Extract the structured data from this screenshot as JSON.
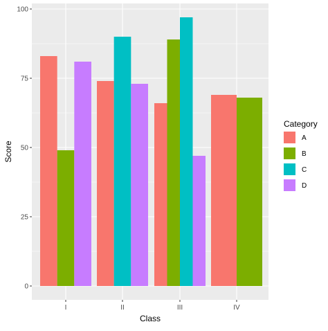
{
  "chart_data": {
    "type": "bar",
    "title": "",
    "xlabel": "Class",
    "ylabel": "Score",
    "ylim": [
      0,
      100
    ],
    "yticks": [
      "0",
      "25",
      "50",
      "75",
      "100"
    ],
    "grid": true,
    "legend": {
      "title": "Category",
      "placement": "right"
    },
    "categories": [
      "I",
      "II",
      "III",
      "IV"
    ],
    "series": [
      {
        "name": "A",
        "color": "#F8766D",
        "values": [
          83,
          74,
          66,
          69
        ]
      },
      {
        "name": "B",
        "color": "#7CAE00",
        "values": [
          49,
          null,
          89,
          68
        ]
      },
      {
        "name": "C",
        "color": "#00BFC4",
        "values": [
          null,
          90,
          97,
          null
        ]
      },
      {
        "name": "D",
        "color": "#C77CFF",
        "values": [
          81,
          73,
          47,
          null
        ]
      }
    ],
    "panel_background": "#EBEBEB",
    "grid_color": "#FFFFFF"
  }
}
